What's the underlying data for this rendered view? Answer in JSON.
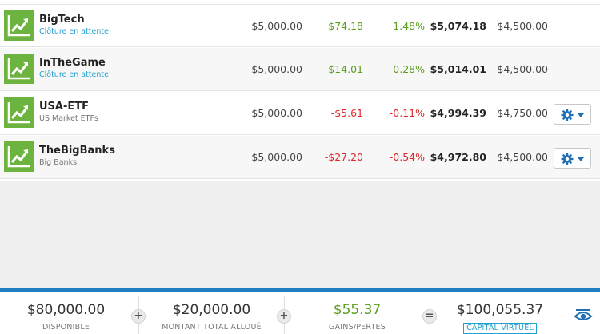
{
  "colors": {
    "accent": "#1f7ec1",
    "positive": "#5a9e1c",
    "negative": "#e0262b",
    "link": "#21a0d2",
    "thumb": "#6cb33f"
  },
  "portfolios": [
    {
      "name": "BigTech",
      "subtitle": "Clôture en attente",
      "invested": "$5,000.00",
      "pl": "$74.18",
      "pl_pct": "1.48%",
      "equity": "$5,074.18",
      "stop_loss": "$4,500.00",
      "trend": "positive"
    },
    {
      "name": "InTheGame",
      "subtitle": "Clôture en attente",
      "invested": "$5,000.00",
      "pl": "$14.01",
      "pl_pct": "0.28%",
      "equity": "$5,014.01",
      "stop_loss": "$4,500.00",
      "trend": "positive"
    },
    {
      "name": "USA-ETF",
      "subtitle": "US Market ETFs",
      "invested": "$5,000.00",
      "pl": "-$5.61",
      "pl_pct": "-0.11%",
      "equity": "$4,994.39",
      "stop_loss": "$4,750.00",
      "trend": "negative"
    },
    {
      "name": "TheBigBanks",
      "subtitle": "Big Banks",
      "invested": "$5,000.00",
      "pl": "-$27.20",
      "pl_pct": "-0.54%",
      "equity": "$4,972.80",
      "stop_loss": "$4,500.00",
      "trend": "negative"
    }
  ],
  "footer": {
    "available": {
      "value": "$80,000.00",
      "label": "DISPONIBLE"
    },
    "allocated": {
      "value": "$20,000.00",
      "label": "MONTANT TOTAL ALLOUÉ"
    },
    "profit": {
      "value": "$55.37",
      "label": "GAINS/PERTES"
    },
    "virtual_capital": {
      "value": "$100,055.37",
      "label": "CAPITAL VIRTUEL"
    },
    "op_plus": "+",
    "op_equals": "="
  }
}
